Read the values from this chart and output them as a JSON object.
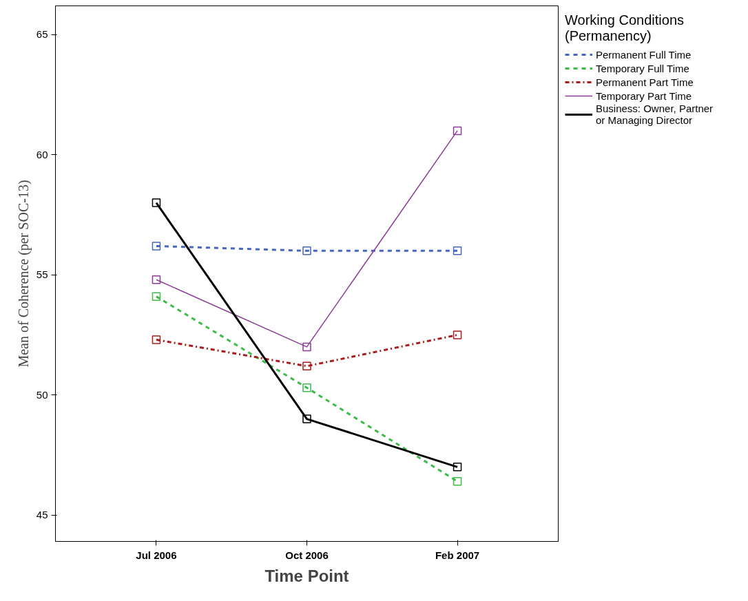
{
  "chart_data": {
    "type": "line",
    "xlabel": "Time Point",
    "ylabel": "Mean of Coherence (per SOC-13)",
    "legend_title": "Working Conditions\n(Permanency)",
    "categories": [
      "Jul 2006",
      "Oct 2006",
      "Feb 2007"
    ],
    "series": [
      {
        "name": "Permanent Full Time",
        "color": "#4466bb",
        "line_style": "dashed",
        "values": [
          56.2,
          56.0,
          56.0
        ]
      },
      {
        "name": "Temporary Full Time",
        "color": "#3cba4a",
        "line_style": "dashed",
        "values": [
          54.1,
          50.3,
          46.4
        ]
      },
      {
        "name": "Permanent Part Time",
        "color": "#a81c1c",
        "line_style": "dashdot",
        "values": [
          52.3,
          51.2,
          52.5
        ]
      },
      {
        "name": "Temporary Part Time",
        "color": "#8b3a96",
        "line_style": "solid",
        "values": [
          54.8,
          52.0,
          61.0
        ]
      },
      {
        "name": "Business: Owner, Partner\nor Managing Director",
        "color": "#000000",
        "line_style": "solid",
        "values": [
          58.0,
          49.0,
          47.0
        ]
      }
    ],
    "ylim": [
      43.9,
      66.2
    ],
    "yticks": [
      45,
      50,
      55,
      60,
      65
    ],
    "grid": false,
    "legend": "top right",
    "marker": "square"
  }
}
